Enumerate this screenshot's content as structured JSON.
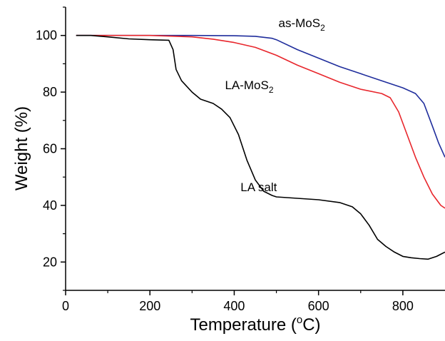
{
  "chart_data": {
    "type": "line",
    "title": "",
    "xlabel": "Temperature (",
    "xlabel_sup": "o",
    "xlabel_tail": "C)",
    "ylabel": "Weight (%)",
    "xlim": [
      0,
      900
    ],
    "ylim": [
      10,
      110
    ],
    "x_ticks": [
      0,
      200,
      400,
      600,
      800
    ],
    "y_ticks": [
      20,
      40,
      60,
      80,
      100
    ],
    "grid": false,
    "legend": "none",
    "series": [
      {
        "name": "as-MoS2",
        "label_main": "as-MoS",
        "label_sub": "2",
        "color": "#1f2d9c",
        "x": [
          25,
          100,
          200,
          300,
          400,
          450,
          490,
          500,
          550,
          600,
          650,
          700,
          750,
          800,
          830,
          850,
          870,
          885,
          900
        ],
        "y": [
          100,
          100,
          100,
          100,
          99.9,
          99.7,
          99,
          98.5,
          95,
          92,
          89,
          86.5,
          84,
          81.5,
          79.5,
          76,
          68,
          62,
          57
        ]
      },
      {
        "name": "LA-MoS2",
        "label_main": "LA-MoS",
        "label_sub": "2",
        "color": "#e8262c",
        "x": [
          25,
          100,
          200,
          300,
          350,
          400,
          450,
          500,
          550,
          600,
          650,
          700,
          750,
          770,
          790,
          810,
          830,
          850,
          870,
          890,
          900
        ],
        "y": [
          100,
          100,
          100,
          99.5,
          98.7,
          97.5,
          95.8,
          93,
          89.5,
          86.5,
          83.5,
          81,
          79.5,
          78,
          73,
          65,
          57,
          50,
          44,
          40,
          39
        ]
      },
      {
        "name": "LA salt",
        "label_main": "LA salt",
        "label_sub": "",
        "color": "#000000",
        "x": [
          25,
          60,
          100,
          150,
          200,
          245,
          255,
          262,
          275,
          300,
          320,
          350,
          370,
          390,
          410,
          430,
          450,
          470,
          490,
          500,
          550,
          600,
          650,
          680,
          700,
          720,
          740,
          760,
          780,
          800,
          820,
          840,
          860,
          880,
          900
        ],
        "y": [
          100,
          100,
          99.5,
          98.8,
          98.5,
          98.3,
          95,
          88,
          84,
          80,
          77.5,
          76,
          74,
          71,
          65,
          56,
          49,
          45,
          43.5,
          43,
          42.5,
          42,
          41,
          39.5,
          37,
          33,
          28,
          25.5,
          23.5,
          22,
          21.5,
          21.2,
          21,
          22,
          23.5
        ]
      }
    ],
    "annotations": [
      {
        "series": 0,
        "x": 505,
        "y": 103
      },
      {
        "series": 1,
        "x": 378,
        "y": 81
      },
      {
        "series": 2,
        "x": 415,
        "y": 45
      }
    ]
  }
}
